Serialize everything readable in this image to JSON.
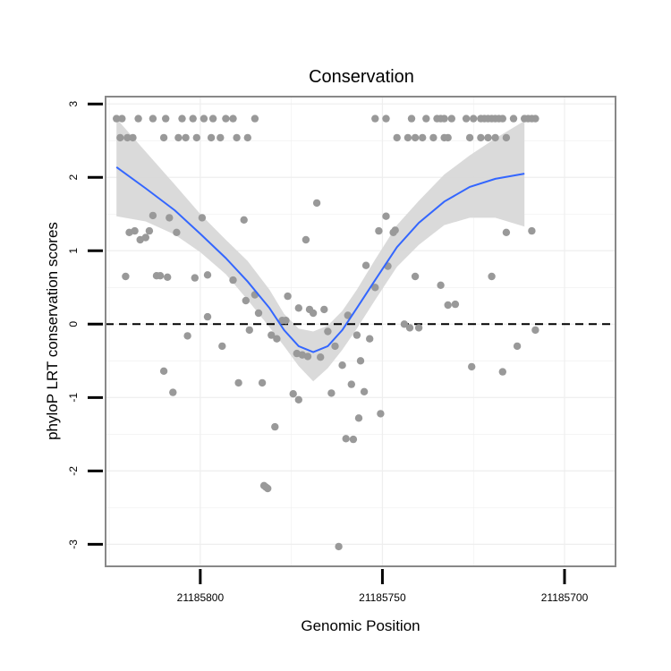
{
  "chart_data": {
    "type": "scatter",
    "title": "Conservation",
    "xlabel": "Genomic Position",
    "ylabel": "phyloP LRT conservation scores",
    "x_reversed": true,
    "xlim": [
      21185826,
      21185686
    ],
    "ylim": [
      -3.3,
      3.1
    ],
    "x_ticks": [
      21185800,
      21185750,
      21185700
    ],
    "x_tick_labels": [
      "21185800",
      "21185750",
      "21185700"
    ],
    "y_ticks": [
      3,
      2,
      1,
      0,
      -1,
      -2,
      -3
    ],
    "y_tick_labels": [
      "3",
      "2",
      "1",
      "0",
      "-1",
      "-2",
      "-3"
    ],
    "reference_line": {
      "y": 0,
      "style": "dashed"
    },
    "colors": {
      "points": "#999999",
      "smooth_line": "#3366FF",
      "ribbon": "#d6d6d6",
      "panel_border": "#888888",
      "grid": "#eeeeee"
    },
    "series": [
      {
        "name": "scores",
        "kind": "points",
        "points": [
          [
            21185823,
            2.8
          ],
          [
            21185821.5,
            2.8
          ],
          [
            21185817,
            2.8
          ],
          [
            21185813,
            2.8
          ],
          [
            21185809.5,
            2.8
          ],
          [
            21185805,
            2.8
          ],
          [
            21185802,
            2.8
          ],
          [
            21185799,
            2.8
          ],
          [
            21185796.5,
            2.8
          ],
          [
            21185793,
            2.8
          ],
          [
            21185791,
            2.8
          ],
          [
            21185785,
            2.8
          ],
          [
            21185822,
            2.54
          ],
          [
            21185820,
            2.54
          ],
          [
            21185818.5,
            2.54
          ],
          [
            21185810,
            2.54
          ],
          [
            21185806,
            2.54
          ],
          [
            21185804,
            2.54
          ],
          [
            21185801,
            2.54
          ],
          [
            21185797,
            2.54
          ],
          [
            21185794.5,
            2.54
          ],
          [
            21185790,
            2.54
          ],
          [
            21185787,
            2.54
          ],
          [
            21185813,
            1.48
          ],
          [
            21185808.5,
            1.45
          ],
          [
            21185806.5,
            1.25
          ],
          [
            21185799.5,
            1.45
          ],
          [
            21185788,
            1.42
          ],
          [
            21185819.5,
            1.25
          ],
          [
            21185818,
            1.27
          ],
          [
            21185816.5,
            1.15
          ],
          [
            21185815,
            1.18
          ],
          [
            21185814,
            1.27
          ],
          [
            21185820.5,
            0.65
          ],
          [
            21185812,
            0.66
          ],
          [
            21185811,
            0.66
          ],
          [
            21185809,
            0.64
          ],
          [
            21185801.5,
            0.63
          ],
          [
            21185798,
            0.67
          ],
          [
            21185791,
            0.6
          ],
          [
            21185810,
            -0.64
          ],
          [
            21185807.5,
            -0.93
          ],
          [
            21185803.5,
            -0.16
          ],
          [
            21185798,
            0.1
          ],
          [
            21185794,
            -0.3
          ],
          [
            21185789.5,
            -0.8
          ],
          [
            21185787.5,
            0.32
          ],
          [
            21185786.5,
            -0.08
          ],
          [
            21185785,
            0.4
          ],
          [
            21185784,
            0.15
          ],
          [
            21185783,
            -0.8
          ],
          [
            21185782.5,
            -2.2
          ],
          [
            21185782,
            -2.22
          ],
          [
            21185781.5,
            -2.24
          ],
          [
            21185780.5,
            -0.15
          ],
          [
            21185779.5,
            -1.4
          ],
          [
            21185779,
            -0.2
          ],
          [
            21185777.5,
            0.05
          ],
          [
            21185776.5,
            0.05
          ],
          [
            21185776,
            0.38
          ],
          [
            21185774.5,
            -0.95
          ],
          [
            21185773,
            -1.03
          ],
          [
            21185773.5,
            -0.4
          ],
          [
            21185772,
            -0.42
          ],
          [
            21185770,
            0.2
          ],
          [
            21185773,
            0.22
          ],
          [
            21185771,
            1.15
          ],
          [
            21185769,
            0.15
          ],
          [
            21185768,
            1.65
          ],
          [
            21185770.5,
            -0.44
          ],
          [
            21185767,
            -0.45
          ],
          [
            21185766,
            0.2
          ],
          [
            21185765,
            -0.1
          ],
          [
            21185764,
            -0.94
          ],
          [
            21185763,
            -0.3
          ],
          [
            21185762,
            -3.03
          ],
          [
            21185761,
            -0.56
          ],
          [
            21185760,
            -1.56
          ],
          [
            21185759.5,
            0.12
          ],
          [
            21185758.5,
            -0.82
          ],
          [
            21185758,
            -1.57
          ],
          [
            21185757,
            -0.15
          ],
          [
            21185756.5,
            -1.28
          ],
          [
            21185756,
            -0.5
          ],
          [
            21185755,
            -0.92
          ],
          [
            21185754.5,
            0.8
          ],
          [
            21185753.5,
            -0.2
          ],
          [
            21185752,
            0.5
          ],
          [
            21185751,
            1.27
          ],
          [
            21185750.5,
            -1.22
          ],
          [
            21185749,
            1.47
          ],
          [
            21185748.5,
            0.79
          ],
          [
            21185747,
            1.25
          ],
          [
            21185746.5,
            1.28
          ],
          [
            21185744,
            0
          ],
          [
            21185742.5,
            -0.05
          ],
          [
            21185741,
            0.65
          ],
          [
            21185740,
            -0.05
          ],
          [
            21185734,
            0.53
          ],
          [
            21185732,
            0.26
          ],
          [
            21185730,
            0.27
          ],
          [
            21185725.5,
            -0.58
          ],
          [
            21185720,
            0.65
          ],
          [
            21185717,
            -0.65
          ],
          [
            21185716,
            1.25
          ],
          [
            21185713,
            -0.3
          ],
          [
            21185709,
            1.27
          ],
          [
            21185708,
            -0.08
          ],
          [
            21185752,
            2.8
          ],
          [
            21185749,
            2.8
          ],
          [
            21185742,
            2.8
          ],
          [
            21185738,
            2.8
          ],
          [
            21185735,
            2.8
          ],
          [
            21185734,
            2.8
          ],
          [
            21185733,
            2.8
          ],
          [
            21185731,
            2.8
          ],
          [
            21185727,
            2.8
          ],
          [
            21185725,
            2.8
          ],
          [
            21185723,
            2.8
          ],
          [
            21185722,
            2.8
          ],
          [
            21185721,
            2.8
          ],
          [
            21185720,
            2.8
          ],
          [
            21185719,
            2.8
          ],
          [
            21185718,
            2.8
          ],
          [
            21185717,
            2.8
          ],
          [
            21185714,
            2.8
          ],
          [
            21185711,
            2.8
          ],
          [
            21185710,
            2.8
          ],
          [
            21185709,
            2.8
          ],
          [
            21185708,
            2.8
          ],
          [
            21185746,
            2.54
          ],
          [
            21185743,
            2.54
          ],
          [
            21185741,
            2.54
          ],
          [
            21185739,
            2.54
          ],
          [
            21185736,
            2.54
          ],
          [
            21185733,
            2.54
          ],
          [
            21185732,
            2.54
          ],
          [
            21185726,
            2.54
          ],
          [
            21185723,
            2.54
          ],
          [
            21185721,
            2.54
          ],
          [
            21185719,
            2.54
          ],
          [
            21185716,
            2.54
          ]
        ]
      },
      {
        "name": "smooth",
        "kind": "line",
        "points": [
          [
            21185823,
            2.14
          ],
          [
            21185815,
            1.85
          ],
          [
            21185807,
            1.55
          ],
          [
            21185800,
            1.23
          ],
          [
            21185793,
            0.9
          ],
          [
            21185787,
            0.58
          ],
          [
            21185781,
            0.22
          ],
          [
            21185777,
            -0.08
          ],
          [
            21185773,
            -0.3
          ],
          [
            21185769,
            -0.38
          ],
          [
            21185765,
            -0.3
          ],
          [
            21185761,
            -0.08
          ],
          [
            21185757,
            0.22
          ],
          [
            21185752,
            0.6
          ],
          [
            21185746,
            1.05
          ],
          [
            21185740,
            1.38
          ],
          [
            21185733,
            1.67
          ],
          [
            21185726,
            1.87
          ],
          [
            21185719,
            1.98
          ],
          [
            21185711,
            2.05
          ]
        ]
      },
      {
        "name": "confidence band",
        "kind": "ribbon",
        "upper": [
          [
            21185823,
            2.8
          ],
          [
            21185815,
            2.35
          ],
          [
            21185807,
            1.9
          ],
          [
            21185800,
            1.5
          ],
          [
            21185793,
            1.15
          ],
          [
            21185787,
            0.86
          ],
          [
            21185781,
            0.47
          ],
          [
            21185777,
            0.14
          ],
          [
            21185773,
            -0.06
          ],
          [
            21185769,
            -0.1
          ],
          [
            21185765,
            -0.02
          ],
          [
            21185761,
            0.18
          ],
          [
            21185757,
            0.47
          ],
          [
            21185752,
            0.88
          ],
          [
            21185746,
            1.35
          ],
          [
            21185740,
            1.68
          ],
          [
            21185733,
            2.04
          ],
          [
            21185726,
            2.3
          ],
          [
            21185719,
            2.53
          ],
          [
            21185711,
            2.77
          ]
        ],
        "lower": [
          [
            21185823,
            1.47
          ],
          [
            21185815,
            1.4
          ],
          [
            21185807,
            1.22
          ],
          [
            21185800,
            0.98
          ],
          [
            21185793,
            0.68
          ],
          [
            21185787,
            0.33
          ],
          [
            21185781,
            -0.04
          ],
          [
            21185777,
            -0.3
          ],
          [
            21185773,
            -0.57
          ],
          [
            21185769,
            -0.78
          ],
          [
            21185765,
            -0.6
          ],
          [
            21185761,
            -0.35
          ],
          [
            21185757,
            -0.06
          ],
          [
            21185752,
            0.33
          ],
          [
            21185746,
            0.78
          ],
          [
            21185740,
            1.08
          ],
          [
            21185733,
            1.35
          ],
          [
            21185726,
            1.45
          ],
          [
            21185719,
            1.45
          ],
          [
            21185711,
            1.33
          ]
        ]
      }
    ]
  }
}
